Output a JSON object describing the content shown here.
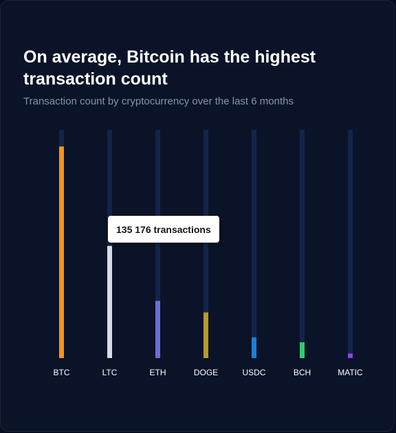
{
  "header": {
    "title": "On average, Bitcoin has the highest transaction count",
    "subtitle": "Transaction count by cryptocurrency over the last 6 months"
  },
  "tooltip": {
    "text": "135 176 transactions",
    "series_index": 1
  },
  "colors": {
    "track": "#13244a",
    "label": "#ffffff"
  },
  "chart_data": {
    "type": "bar",
    "orientation": "vertical",
    "title": "On average, Bitcoin has the highest transaction count",
    "subtitle": "Transaction count by cryptocurrency over the last 6 months",
    "categories": [
      "BTC",
      "LTC",
      "ETH",
      "DOGE",
      "USDC",
      "BCH",
      "MATIC"
    ],
    "values": [
      255000,
      135176,
      69000,
      55000,
      25000,
      19000,
      5500
    ],
    "ylim": [
      0,
      275000
    ],
    "colors": [
      "#f7931a",
      "#d8dee6",
      "#6b6fd6",
      "#b89a2c",
      "#1d7fd6",
      "#2ecc71",
      "#8e44e0"
    ],
    "grid": false,
    "legend": "none"
  }
}
